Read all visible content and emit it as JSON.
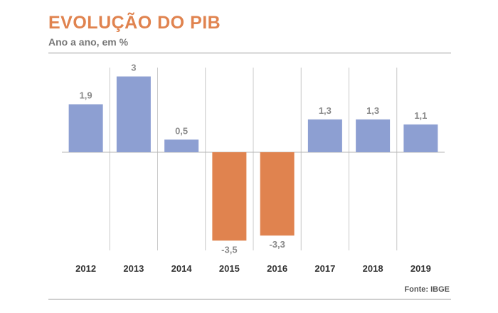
{
  "chart_data": {
    "type": "bar",
    "title": "EVOLUÇÃO DO PIB",
    "subtitle": "Ano a ano, em %",
    "categories": [
      "2012",
      "2013",
      "2014",
      "2015",
      "2016",
      "2017",
      "2018",
      "2019"
    ],
    "values": [
      1.9,
      3,
      0.5,
      -3.5,
      -3.3,
      1.3,
      1.3,
      1.1
    ],
    "value_labels": [
      "1,9",
      "3",
      "0,5",
      "-3,5",
      "-3,3",
      "1,3",
      "1,3",
      "1,1"
    ],
    "source": "Fonte: IBGE",
    "ylim": [
      -3.8,
      3.2
    ],
    "grid": "vertical separators",
    "colors": {
      "positive": "#8d9fd2",
      "negative": "#e0834f",
      "title": "#e0834f"
    }
  }
}
